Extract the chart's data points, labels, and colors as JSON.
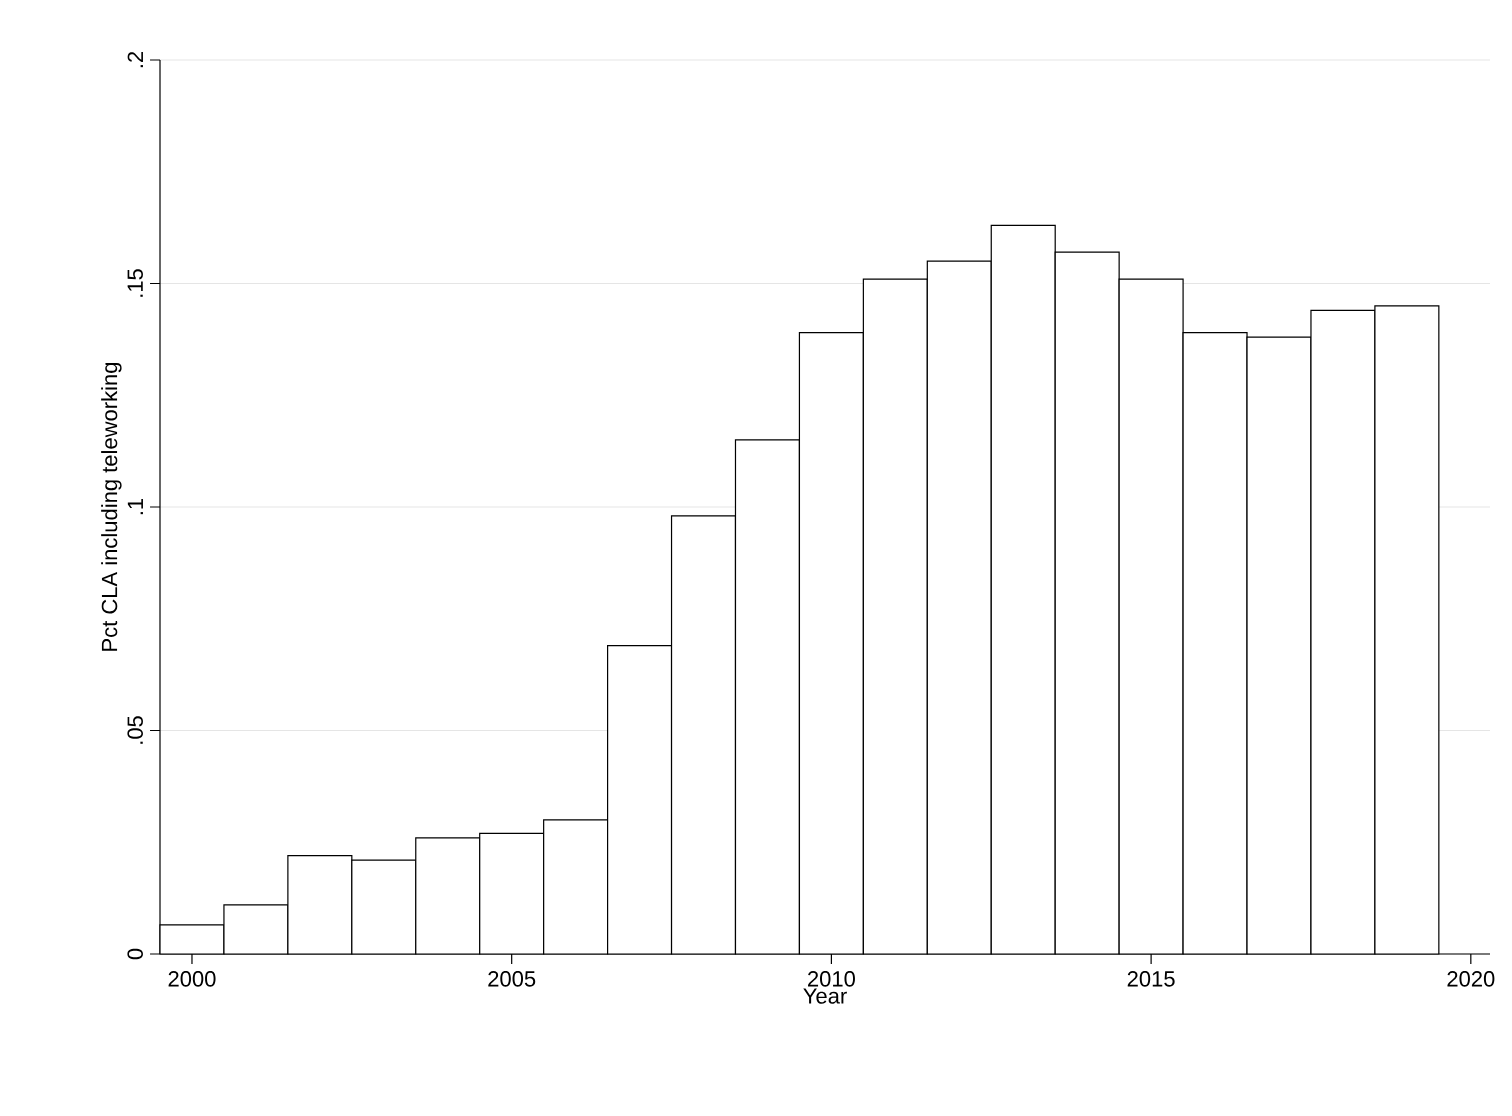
{
  "chart_data": {
    "type": "bar",
    "xlabel": "Year",
    "ylabel": "Pct CLA including teleworking",
    "x": [
      2000,
      2001,
      2002,
      2003,
      2004,
      2005,
      2006,
      2007,
      2008,
      2009,
      2010,
      2011,
      2012,
      2013,
      2014,
      2015,
      2016,
      2017,
      2018,
      2019
    ],
    "values": [
      0.0065,
      0.011,
      0.022,
      0.021,
      0.026,
      0.027,
      0.03,
      0.069,
      0.098,
      0.115,
      0.139,
      0.151,
      0.155,
      0.163,
      0.157,
      0.151,
      0.139,
      0.138,
      0.144,
      0.145
    ],
    "color": "#ffffff",
    "xlim": [
      1999.5,
      2020.3
    ],
    "xticks": [
      2000,
      2005,
      2010,
      2015,
      2020
    ],
    "ylim": [
      0,
      0.2
    ],
    "yticks": [
      {
        "value": 0,
        "label": "0"
      },
      {
        "value": 0.05,
        "label": ".05"
      },
      {
        "value": 0.1,
        "label": ".1"
      },
      {
        "value": 0.15,
        "label": ".15"
      },
      {
        "value": 0.2,
        "label": ".2"
      }
    ],
    "grid": "y"
  }
}
